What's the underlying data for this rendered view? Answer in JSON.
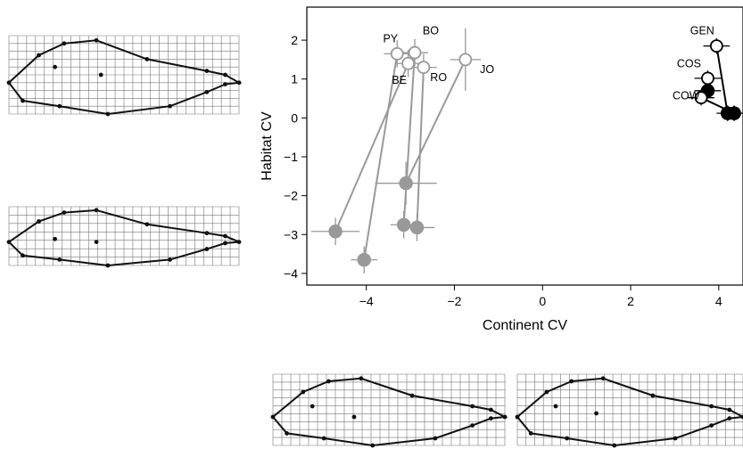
{
  "chart_data": {
    "type": "scatter",
    "xlabel": "Continent CV",
    "ylabel": "Habitat CV",
    "xlim": [
      -5.35,
      4.55
    ],
    "ylim": [
      -4.3,
      2.85
    ],
    "x_ticks": [
      -4,
      -2,
      0,
      2,
      4
    ],
    "y_ticks": [
      2,
      1,
      0,
      -1,
      -2,
      -3,
      -4
    ],
    "x_tick_labels": [
      "−4",
      "−2",
      "0",
      "2",
      "4"
    ],
    "y_tick_labels": [
      "2",
      "1",
      "0",
      "−1",
      "−2",
      "−3",
      "−4"
    ],
    "grid": false,
    "colors": {
      "gray_group": "#999999",
      "black_group": "#000000"
    },
    "series": [
      {
        "group": "gray",
        "pairs": [
          {
            "label": "PY",
            "open": {
              "x": -3.3,
              "y": 1.65,
              "xerr": 0.3,
              "yerr": 0.35
            },
            "filled": {
              "x": -4.05,
              "y": -3.65,
              "xerr": 0.3,
              "yerr": 0.35
            }
          },
          {
            "label": "BO",
            "open": {
              "x": -2.9,
              "y": 1.68,
              "xerr": 0.3,
              "yerr": 0.35
            },
            "filled": {
              "x": -3.15,
              "y": -2.75,
              "xerr": 0.3,
              "yerr": 0.35
            }
          },
          {
            "label": "BE",
            "open": {
              "x": -3.05,
              "y": 1.4,
              "xerr": 0.3,
              "yerr": 0.35
            },
            "filled": {
              "x": -4.7,
              "y": -2.92,
              "xerr": 0.55,
              "yerr": 0.35
            }
          },
          {
            "label": "RO",
            "open": {
              "x": -2.7,
              "y": 1.3,
              "xerr": 0.3,
              "yerr": 0.35
            },
            "filled": {
              "x": -2.85,
              "y": -2.82,
              "xerr": 0.4,
              "yerr": 0.35
            }
          },
          {
            "label": "JO",
            "open": {
              "x": -1.75,
              "y": 1.5,
              "xerr": 0.35,
              "yerr": 0.8
            },
            "filled": {
              "x": -3.1,
              "y": -1.68,
              "xerr": 0.7,
              "yerr": 0.55
            }
          }
        ]
      },
      {
        "group": "black",
        "pairs": [
          {
            "label": "GEN",
            "open": {
              "x": 3.95,
              "y": 1.85,
              "xerr": 0.3,
              "yerr": 0.2
            },
            "filled": {
              "x": 4.2,
              "y": 0.12,
              "xerr": 0.25,
              "yerr": 0.2
            }
          },
          {
            "label": "COS",
            "open": {
              "x": 3.75,
              "y": 1.02,
              "xerr": 0.3,
              "yerr": 0.2
            },
            "filled": {
              "x": 3.75,
              "y": 0.7,
              "xerr": 0.3,
              "yerr": 0.2
            }
          },
          {
            "label": "COW",
            "open": {
              "x": 3.6,
              "y": 0.52,
              "xerr": 0.3,
              "yerr": 0.2
            },
            "filled": {
              "x": 4.35,
              "y": 0.12,
              "xerr": 0.25,
              "yerr": 0.2
            }
          }
        ]
      }
    ],
    "labels": [
      {
        "text": "PY",
        "x": -3.62,
        "y": 1.95
      },
      {
        "text": "BO",
        "x": -2.72,
        "y": 2.15
      },
      {
        "text": "BE",
        "x": -3.42,
        "y": 0.88
      },
      {
        "text": "RO",
        "x": -2.55,
        "y": 0.95
      },
      {
        "text": "JO",
        "x": -1.42,
        "y": 1.15
      },
      {
        "text": "GEN",
        "x": 3.35,
        "y": 2.15
      },
      {
        "text": "COS",
        "x": 3.05,
        "y": 1.3
      },
      {
        "text": "COW",
        "x": 2.95,
        "y": 0.48
      }
    ]
  },
  "shape_panels": [
    {
      "name": "shape-top-left",
      "dots": [
        [
          0.2,
          0.4
        ],
        [
          0.4,
          0.5
        ]
      ]
    },
    {
      "name": "shape-middle-left",
      "dots": [
        [
          0.2,
          0.55
        ],
        [
          0.38,
          0.6
        ]
      ]
    },
    {
      "name": "shape-bottom-center",
      "dots": [
        [
          0.17,
          0.45
        ],
        [
          0.35,
          0.6
        ]
      ]
    },
    {
      "name": "shape-bottom-right",
      "dots": [
        [
          0.17,
          0.45
        ],
        [
          0.35,
          0.55
        ]
      ]
    }
  ]
}
